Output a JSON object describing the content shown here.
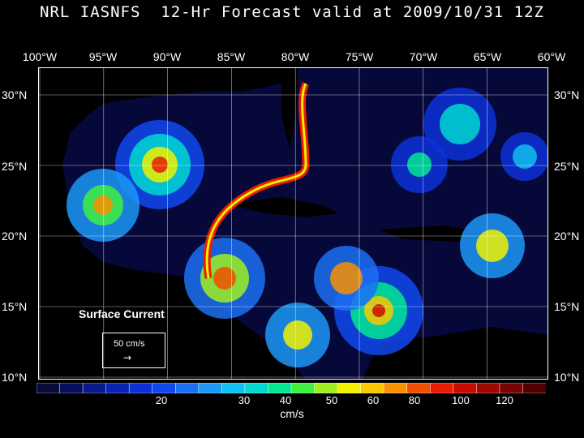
{
  "title": "NRL IASNFS  12-Hr Forecast valid at 2009/10/31 12Z",
  "lon_labels": [
    "100°W",
    "95°W",
    "90°W",
    "85°W",
    "80°W",
    "75°W",
    "70°W",
    "65°W",
    "60°W"
  ],
  "lat_labels": [
    "30°N",
    "25°N",
    "20°N",
    "15°N",
    "10°N"
  ],
  "field_label": "Surface Current",
  "reference_vector": {
    "label": "50 cm/s",
    "arrow": "→"
  },
  "colorbar": {
    "ticks": [
      "20",
      "30",
      "40",
      "50",
      "60",
      "80",
      "100",
      "120"
    ],
    "units": "cm/s",
    "colors": [
      "#0b0b3c",
      "#08105e",
      "#0a1a8a",
      "#0a24b4",
      "#0c30d8",
      "#1048f0",
      "#1c70f4",
      "#1c98f8",
      "#10c0f0",
      "#00d8d0",
      "#00e890",
      "#40f040",
      "#a0f020",
      "#f0f000",
      "#f8c800",
      "#f89000",
      "#f05000",
      "#e81c00",
      "#c80c00",
      "#a00800",
      "#780404",
      "#500000"
    ]
  }
}
